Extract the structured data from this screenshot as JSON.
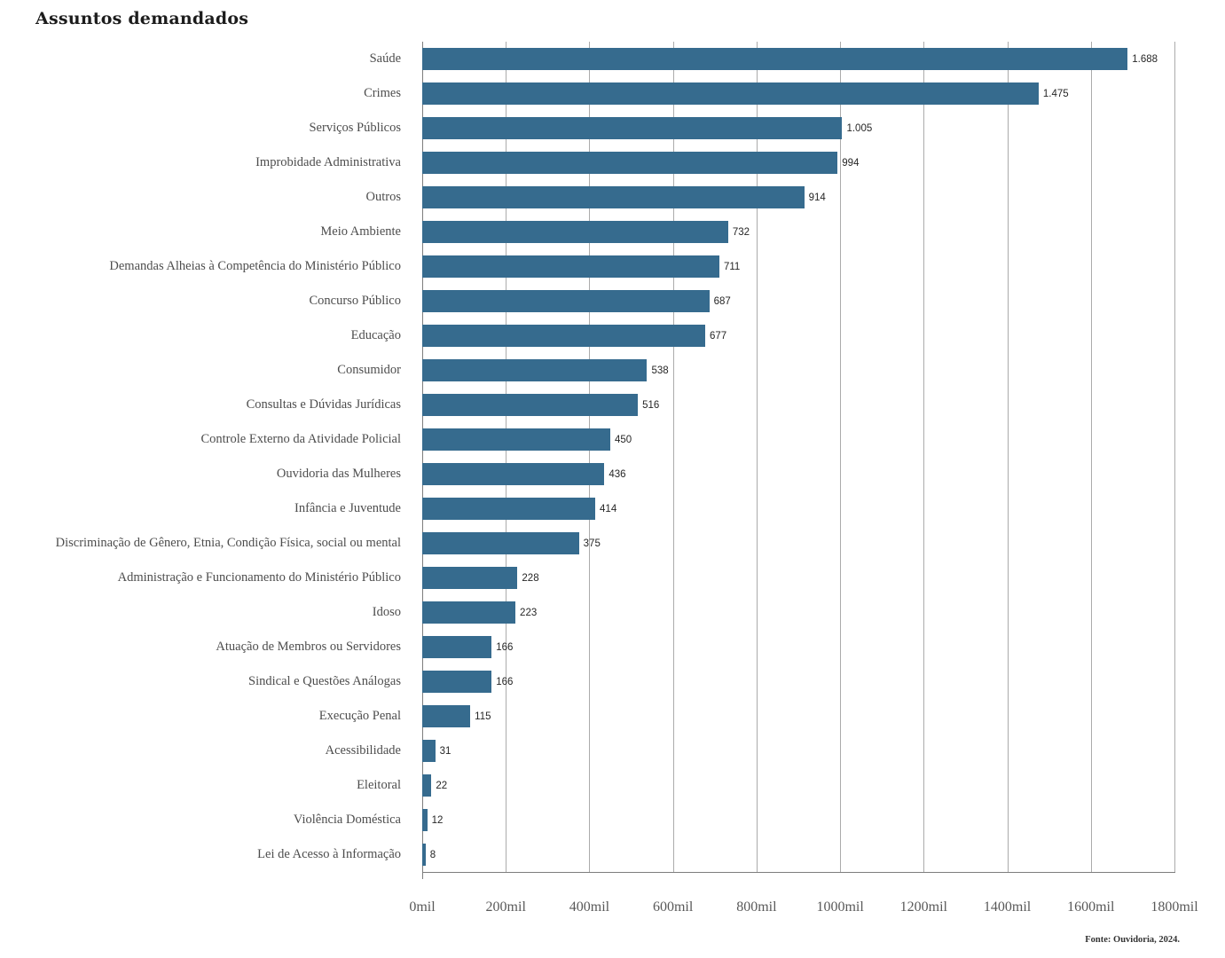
{
  "page": {
    "title": "Assuntos demandados",
    "source_note": "Fonte: Ouvidoria, 2024."
  },
  "chart_data": {
    "type": "bar",
    "orientation": "horizontal",
    "title": "Assuntos demandados",
    "categories": [
      "Saúde",
      "Crimes",
      "Serviços Públicos",
      "Improbidade Administrativa",
      "Outros",
      "Meio Ambiente",
      "Demandas Alheias à Competência do Ministério Público",
      "Concurso Público",
      "Educação",
      "Consumidor",
      "Consultas e Dúvidas Jurídicas",
      "Controle Externo da Atividade Policial",
      "Ouvidoria das Mulheres",
      "Infância e Juventude",
      "Discriminação de Gênero, Etnia, Condição Física, social ou mental",
      "Administração e Funcionamento do Ministério Público",
      "Idoso",
      "Atuação de Membros ou Servidores",
      "Sindical e Questões Análogas",
      "Execução Penal",
      "Acessibilidade",
      "Eleitoral",
      "Violência Doméstica",
      "Lei de Acesso à Informação"
    ],
    "values": [
      1688,
      1475,
      1005,
      994,
      914,
      732,
      711,
      687,
      677,
      538,
      516,
      450,
      436,
      414,
      375,
      228,
      223,
      166,
      166,
      115,
      31,
      22,
      12,
      8
    ],
    "value_labels": [
      "1.688",
      "1.475",
      "1.005",
      "994",
      "914",
      "732",
      "711",
      "687",
      "677",
      "538",
      "516",
      "450",
      "436",
      "414",
      "375",
      "228",
      "223",
      "166",
      "166",
      "115",
      "31",
      "22",
      "12",
      "8"
    ],
    "x_tick_labels": [
      "0mil",
      "200mil",
      "400mil",
      "600mil",
      "800mil",
      "1000mil",
      "1200mil",
      "1400mil",
      "1600mil",
      "1800mil"
    ],
    "xlim": [
      0,
      1800
    ],
    "grid": "vertical gridlines every 200, light gray",
    "legend": "none",
    "bar_color": "#366B8E",
    "source": "Fonte: Ouvidoria, 2024."
  }
}
